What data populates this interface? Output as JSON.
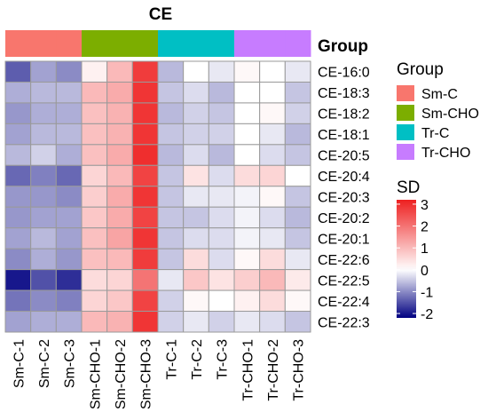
{
  "chart_data": {
    "type": "heatmap",
    "title": "CE",
    "annotation_label": "Group",
    "columns": [
      "Sm-C-1",
      "Sm-C-2",
      "Sm-C-3",
      "Sm-CHO-1",
      "Sm-CHO-2",
      "Sm-CHO-3",
      "Tr-C-1",
      "Tr-C-2",
      "Tr-C-3",
      "Tr-CHO-1",
      "Tr-CHO-2",
      "Tr-CHO-3"
    ],
    "column_groups": [
      "Sm-C",
      "Sm-C",
      "Sm-C",
      "Sm-CHO",
      "Sm-CHO",
      "Sm-CHO",
      "Tr-C",
      "Tr-C",
      "Tr-C",
      "Tr-CHO",
      "Tr-CHO",
      "Tr-CHO"
    ],
    "rows": [
      "CE-16:0",
      "CE-18:3",
      "CE-18:2",
      "CE-18:1",
      "CE-20:5",
      "CE-20:4",
      "CE-20:3",
      "CE-20:2",
      "CE-20:1",
      "CE-22:6",
      "CE-22:5",
      "CE-22:4",
      "CE-22:3"
    ],
    "values": [
      [
        -1.4,
        -0.8,
        -1.0,
        0.2,
        1.0,
        2.8,
        -0.6,
        0.0,
        -0.2,
        0.1,
        0.0,
        -0.2
      ],
      [
        -0.7,
        -0.6,
        -0.6,
        1.0,
        1.2,
        2.9,
        -0.5,
        -0.3,
        -0.6,
        0.0,
        0.0,
        -0.5
      ],
      [
        -0.9,
        -0.7,
        -0.7,
        0.9,
        1.1,
        2.9,
        -0.6,
        -0.4,
        -0.5,
        0.0,
        0.1,
        -0.4
      ],
      [
        -0.8,
        -0.6,
        -0.6,
        0.9,
        1.1,
        2.9,
        -0.5,
        -0.4,
        -0.4,
        0.0,
        -0.2,
        -0.6
      ],
      [
        -0.6,
        -0.4,
        -0.7,
        0.9,
        1.2,
        3.0,
        -0.6,
        -0.3,
        -0.6,
        0.0,
        -0.3,
        -0.5
      ],
      [
        -1.3,
        -1.1,
        -1.3,
        0.6,
        1.0,
        2.7,
        -0.5,
        0.4,
        -0.3,
        0.5,
        0.6,
        0.0
      ],
      [
        -0.9,
        -0.9,
        -1.0,
        0.7,
        1.2,
        2.9,
        -0.5,
        -0.2,
        -0.2,
        -0.1,
        0.1,
        -0.5
      ],
      [
        -0.9,
        -0.8,
        -0.8,
        0.8,
        1.2,
        2.7,
        -0.5,
        -0.5,
        -0.3,
        -0.1,
        -0.3,
        -0.6
      ],
      [
        -0.8,
        -0.6,
        -0.8,
        0.9,
        1.3,
        2.9,
        -0.5,
        -0.3,
        -0.3,
        -0.1,
        -0.2,
        -0.5
      ],
      [
        -1.0,
        -0.7,
        -0.9,
        0.9,
        1.0,
        2.8,
        -0.5,
        0.5,
        -0.3,
        0.1,
        0.5,
        -0.2
      ],
      [
        -2.0,
        -1.5,
        -1.8,
        0.5,
        0.6,
        2.0,
        -0.2,
        0.8,
        0.4,
        0.7,
        1.0,
        0.3
      ],
      [
        -1.2,
        -1.0,
        -1.1,
        0.6,
        0.8,
        2.7,
        -0.4,
        0.1,
        0.0,
        0.2,
        0.5,
        0.1
      ],
      [
        -0.8,
        -0.7,
        -0.7,
        1.0,
        1.1,
        2.9,
        -0.4,
        -0.2,
        -0.4,
        -0.2,
        -0.3,
        -0.5
      ]
    ],
    "groups": [
      {
        "name": "Sm-C",
        "color": "#F8766D"
      },
      {
        "name": "Sm-CHO",
        "color": "#7CAE00"
      },
      {
        "name": "Tr-C",
        "color": "#00BFC4"
      },
      {
        "name": "Tr-CHO",
        "color": "#C77CFF"
      }
    ],
    "colorbar": {
      "title": "SD",
      "range": [
        -2.2,
        3.2
      ],
      "ticks": [
        3,
        2,
        1,
        0,
        -1,
        -2
      ],
      "tick_labels": [
        "3",
        "2",
        "1",
        "0",
        "-1",
        "-2"
      ],
      "low_color": "#000080",
      "mid_color": "#FFFFFF",
      "high_color": "#EE2020"
    }
  }
}
